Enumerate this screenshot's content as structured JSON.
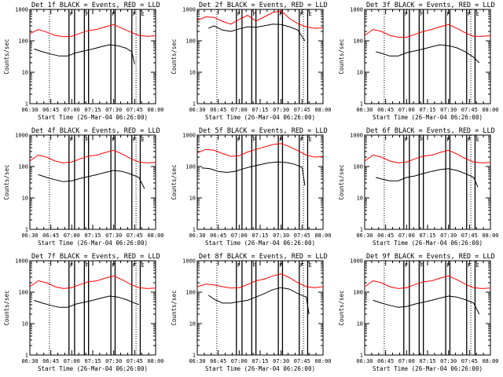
{
  "chart_data": {
    "type": "line",
    "y_axis": {
      "label": "Counts/sec",
      "scale": "log",
      "ylim": [
        1,
        1000
      ],
      "ticks": [
        {
          "v": 1,
          "label": "1"
        },
        {
          "v": 10,
          "label": "10"
        },
        {
          "v": 100,
          "label": "100"
        },
        {
          "v": 1000,
          "label": "1000"
        }
      ]
    },
    "x_axis": {
      "label": "Start Time (26-Mar-04 06:26:00)",
      "range": [
        0,
        90
      ],
      "ticks": [
        {
          "v": 0,
          "label": "06:30"
        },
        {
          "v": 15,
          "label": "06:45"
        },
        {
          "v": 30,
          "label": "07:00"
        },
        {
          "v": 45,
          "label": "07:15"
        },
        {
          "v": 60,
          "label": "07:30"
        },
        {
          "v": 75,
          "label": "07:45"
        },
        {
          "v": 90,
          "label": "08:00"
        }
      ]
    },
    "colors": {
      "events": "#000000",
      "lld": "#ff0000"
    },
    "series_names": {
      "events": "BLACK = Events",
      "lld": "RED = LLD"
    },
    "markers": [
      {
        "kind": "dotted",
        "t": 14
      },
      {
        "kind": "solid",
        "t": 28,
        "flag": "F"
      },
      {
        "kind": "solid",
        "t": 32,
        "flag": ""
      },
      {
        "kind": "solid",
        "t": 39,
        "flag": "F"
      },
      {
        "kind": "solid",
        "t": 42,
        "flag": ""
      },
      {
        "kind": "solid",
        "t": 58,
        "flag": "F"
      },
      {
        "kind": "solid",
        "t": 61,
        "flag": ""
      },
      {
        "kind": "solid",
        "t": 73,
        "flag": "F"
      },
      {
        "kind": "dotted",
        "t": 76,
        "flag": ""
      },
      {
        "kind": "solid",
        "t": 79,
        "flag": "E"
      }
    ],
    "panels": [
      {
        "title": "Det 1f BLACK = Events, RED = LLD",
        "lld": {
          "x": [
            0,
            6,
            12,
            18,
            24,
            30,
            36,
            42,
            48,
            54,
            60,
            66,
            72,
            78,
            84,
            90
          ],
          "y": [
            170,
            230,
            190,
            150,
            135,
            140,
            175,
            215,
            230,
            280,
            330,
            250,
            190,
            150,
            140,
            145
          ]
        },
        "events": {
          "x": [
            3,
            9,
            15,
            21,
            27,
            33,
            39,
            45,
            51,
            57,
            63,
            69,
            73,
            75
          ],
          "y": [
            55,
            45,
            38,
            33,
            33,
            42,
            48,
            55,
            65,
            75,
            70,
            58,
            45,
            18
          ]
        }
      },
      {
        "title": "Det 2f BLACK = Events, RED = LLD",
        "lld": {
          "x": [
            0,
            6,
            12,
            18,
            24,
            30,
            36,
            42,
            48,
            54,
            60,
            66,
            72,
            78,
            84,
            90
          ],
          "y": [
            450,
            580,
            560,
            420,
            340,
            480,
            650,
            430,
            580,
            800,
            900,
            520,
            350,
            280,
            250,
            260
          ]
        },
        "events": {
          "x": [
            8,
            12,
            18,
            24,
            30,
            36,
            42,
            48,
            54,
            60,
            66,
            72,
            77
          ],
          "y": [
            250,
            300,
            220,
            200,
            240,
            280,
            270,
            300,
            340,
            330,
            280,
            220,
            100
          ]
        }
      },
      {
        "title": "Det 3f BLACK = Events, RED = LLD",
        "lld": {
          "x": [
            0,
            6,
            12,
            18,
            24,
            30,
            36,
            42,
            48,
            54,
            60,
            66,
            72,
            78,
            84,
            90
          ],
          "y": [
            150,
            230,
            200,
            150,
            130,
            130,
            160,
            200,
            230,
            280,
            330,
            250,
            180,
            140,
            140,
            145
          ]
        },
        "events": {
          "x": [
            8,
            12,
            18,
            24,
            30,
            36,
            42,
            48,
            54,
            60,
            66,
            72,
            78,
            82
          ],
          "y": [
            45,
            40,
            33,
            33,
            42,
            48,
            55,
            65,
            75,
            70,
            60,
            45,
            30,
            20
          ]
        }
      },
      {
        "title": "Det 4f BLACK = Events, RED = LLD",
        "lld": {
          "x": [
            0,
            6,
            12,
            18,
            24,
            30,
            36,
            42,
            48,
            54,
            60,
            66,
            72,
            78,
            84,
            90
          ],
          "y": [
            150,
            230,
            200,
            150,
            130,
            140,
            175,
            215,
            230,
            280,
            330,
            250,
            180,
            140,
            130,
            135
          ]
        },
        "events": {
          "x": [
            6,
            12,
            18,
            24,
            30,
            36,
            42,
            48,
            54,
            60,
            66,
            72,
            78,
            82
          ],
          "y": [
            55,
            45,
            38,
            33,
            35,
            42,
            48,
            55,
            65,
            75,
            70,
            58,
            45,
            20
          ]
        }
      },
      {
        "title": "Det 5f BLACK = Events, RED = LLD",
        "lld": {
          "x": [
            0,
            6,
            12,
            18,
            24,
            30,
            36,
            42,
            48,
            54,
            60,
            66,
            72,
            78,
            84,
            90
          ],
          "y": [
            270,
            350,
            330,
            260,
            210,
            220,
            290,
            350,
            420,
            500,
            540,
            430,
            320,
            230,
            200,
            210
          ]
        },
        "events": {
          "x": [
            3,
            9,
            15,
            21,
            27,
            33,
            39,
            45,
            51,
            57,
            63,
            69,
            75,
            77
          ],
          "y": [
            90,
            85,
            70,
            65,
            70,
            85,
            100,
            115,
            130,
            140,
            135,
            120,
            95,
            25
          ]
        }
      },
      {
        "title": "Det 6f BLACK = Events, RED = LLD",
        "lld": {
          "x": [
            0,
            6,
            12,
            18,
            24,
            30,
            36,
            42,
            48,
            54,
            60,
            66,
            72,
            78,
            84,
            90
          ],
          "y": [
            150,
            230,
            200,
            150,
            130,
            140,
            175,
            215,
            230,
            280,
            330,
            250,
            180,
            140,
            130,
            135
          ]
        },
        "events": {
          "x": [
            8,
            12,
            18,
            24,
            30,
            36,
            42,
            48,
            54,
            60,
            66,
            72,
            78,
            81
          ],
          "y": [
            45,
            40,
            35,
            35,
            45,
            50,
            60,
            70,
            80,
            85,
            75,
            60,
            45,
            22
          ]
        }
      },
      {
        "title": "Det 7f BLACK = Events, RED = LLD",
        "lld": {
          "x": [
            0,
            6,
            12,
            18,
            24,
            30,
            36,
            42,
            48,
            54,
            60,
            66,
            72,
            78,
            84,
            90
          ],
          "y": [
            150,
            230,
            200,
            150,
            130,
            140,
            175,
            215,
            230,
            280,
            330,
            250,
            180,
            140,
            130,
            135
          ]
        },
        "events": {
          "x": [
            3,
            9,
            15,
            21,
            27,
            33,
            39,
            45,
            51,
            57,
            63,
            69,
            75,
            78
          ],
          "y": [
            55,
            45,
            38,
            33,
            33,
            42,
            48,
            55,
            65,
            75,
            70,
            58,
            45,
            40
          ]
        }
      },
      {
        "title": "Det 8f BLACK = Events, RED = LLD",
        "lld": {
          "x": [
            0,
            6,
            12,
            18,
            24,
            30,
            36,
            42,
            48,
            54,
            60,
            66,
            72,
            78,
            84,
            90
          ],
          "y": [
            150,
            180,
            170,
            150,
            135,
            140,
            175,
            230,
            260,
            330,
            380,
            290,
            200,
            150,
            140,
            150
          ]
        },
        "events": {
          "x": [
            8,
            12,
            18,
            24,
            30,
            36,
            42,
            48,
            54,
            60,
            66,
            72,
            78,
            80
          ],
          "y": [
            80,
            60,
            45,
            45,
            50,
            55,
            70,
            90,
            120,
            140,
            125,
            90,
            70,
            20
          ]
        }
      },
      {
        "title": "Det 9f BLACK = Events, RED = LLD",
        "lld": {
          "x": [
            0,
            6,
            12,
            18,
            24,
            30,
            36,
            42,
            48,
            54,
            60,
            66,
            72,
            78,
            84,
            90
          ],
          "y": [
            150,
            230,
            200,
            150,
            130,
            140,
            175,
            215,
            230,
            280,
            330,
            250,
            180,
            140,
            130,
            135
          ]
        },
        "events": {
          "x": [
            6,
            12,
            18,
            24,
            30,
            36,
            42,
            48,
            54,
            60,
            66,
            72,
            78,
            82
          ],
          "y": [
            55,
            45,
            38,
            33,
            35,
            42,
            48,
            55,
            65,
            75,
            70,
            58,
            45,
            20
          ]
        }
      }
    ]
  }
}
